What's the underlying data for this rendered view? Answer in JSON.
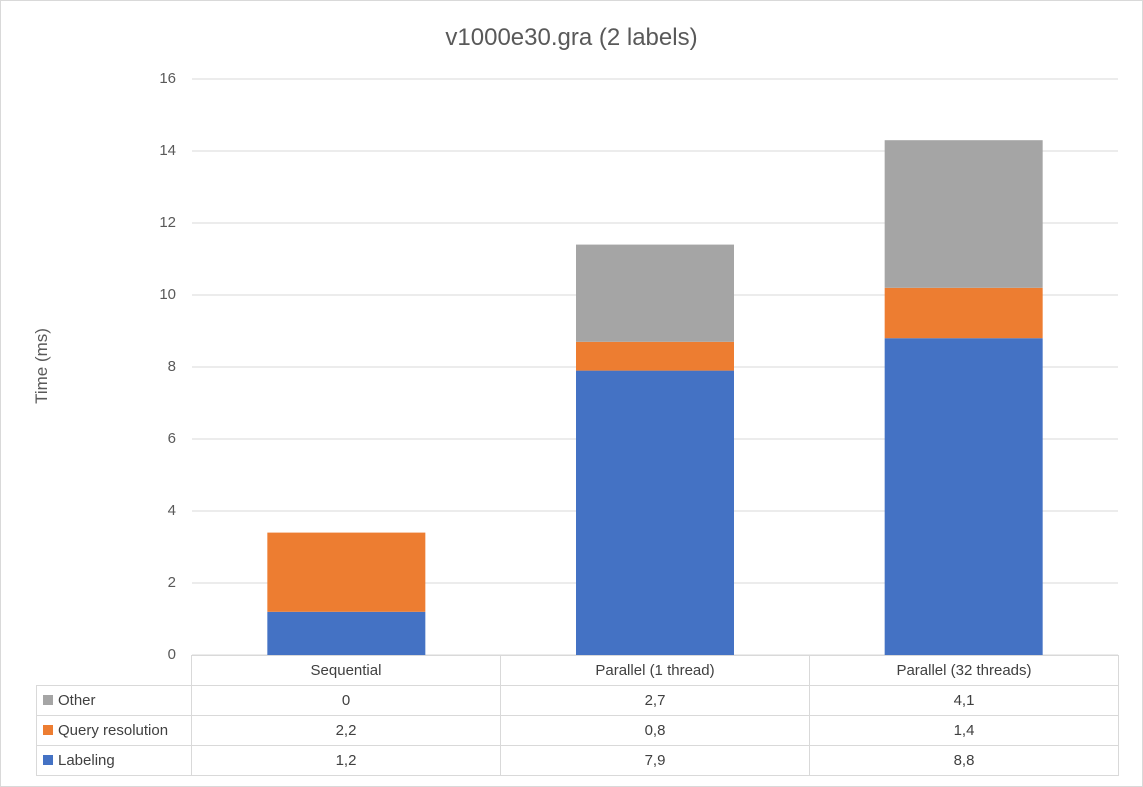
{
  "chart_data": {
    "type": "bar",
    "stacked": true,
    "title": "v1000e30.gra (2 labels)",
    "ylabel": "Time (ms)",
    "ylim": [
      0,
      16
    ],
    "yticks": [
      "0",
      "2",
      "4",
      "6",
      "8",
      "10",
      "12",
      "14",
      "16"
    ],
    "grid": true,
    "categories": [
      "Sequential",
      "Parallel (1 thread)",
      "Parallel (32 threads)"
    ],
    "series": [
      {
        "name": "Labeling",
        "color": "#4472C4",
        "values": [
          1.2,
          7.9,
          8.8
        ],
        "labels": [
          "1,2",
          "7,9",
          "8,8"
        ]
      },
      {
        "name": "Query resolution",
        "color": "#ED7D31",
        "values": [
          2.2,
          0.8,
          1.4
        ],
        "labels": [
          "2,2",
          "0,8",
          "1,4"
        ]
      },
      {
        "name": "Other",
        "color": "#A5A5A5",
        "values": [
          0,
          2.7,
          4.1
        ],
        "labels": [
          "0",
          "2,7",
          "4,1"
        ]
      }
    ],
    "legend": "data-table-below"
  }
}
